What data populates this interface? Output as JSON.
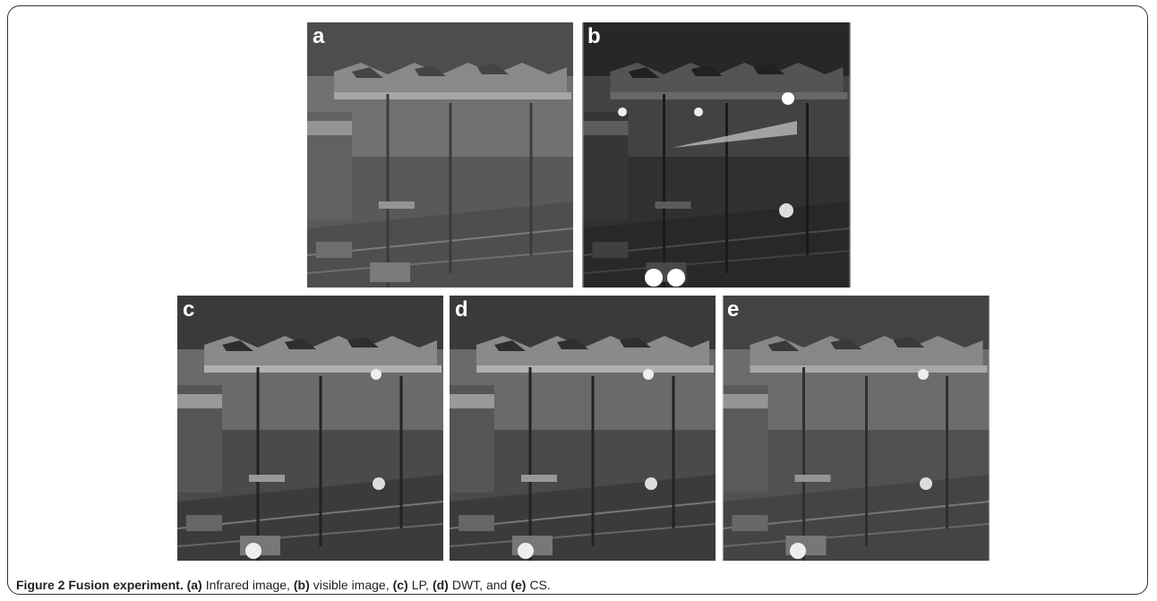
{
  "figure": {
    "panels": [
      {
        "label": "a"
      },
      {
        "label": "b"
      },
      {
        "label": "c"
      },
      {
        "label": "d"
      },
      {
        "label": "e"
      }
    ],
    "caption": {
      "title": "Figure 2 Fusion experiment.",
      "parts": [
        {
          "tag": "(a)",
          "text": "Infrared image,"
        },
        {
          "tag": "(b)",
          "text": "visible image,"
        },
        {
          "tag": "(c)",
          "text": "LP,"
        },
        {
          "tag": "(d)",
          "text": "DWT, and"
        },
        {
          "tag": "(e)",
          "text": "CS."
        }
      ]
    }
  }
}
